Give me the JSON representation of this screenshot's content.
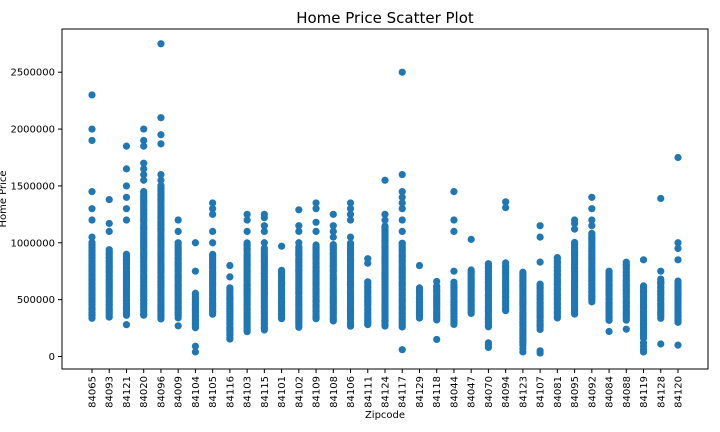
{
  "chart_data": {
    "type": "scatter",
    "title": "Home Price Scatter Plot",
    "xlabel": "Zipcode",
    "ylabel": "Home Price",
    "ylim": [
      -110000,
      2880000
    ],
    "yticks": [
      0,
      500000,
      1000000,
      1500000,
      2000000,
      2500000
    ],
    "grid": false,
    "marker_color": "#1f77b4",
    "categories": [
      "84065",
      "84093",
      "84121",
      "84020",
      "84096",
      "84009",
      "84104",
      "84105",
      "84116",
      "84103",
      "84115",
      "84101",
      "84102",
      "84109",
      "84108",
      "84106",
      "84111",
      "84124",
      "84117",
      "84129",
      "84118",
      "84044",
      "84047",
      "84070",
      "84094",
      "84123",
      "84107",
      "84081",
      "84095",
      "84092",
      "84084",
      "84088",
      "84119",
      "84128",
      "84120"
    ],
    "ranges": [
      [
        340000,
        1000000
      ],
      [
        350000,
        940000
      ],
      [
        360000,
        900000
      ],
      [
        360000,
        1450000
      ],
      [
        330000,
        1500000
      ],
      [
        340000,
        1000000
      ],
      [
        250000,
        560000
      ],
      [
        370000,
        900000
      ],
      [
        150000,
        600000
      ],
      [
        220000,
        1000000
      ],
      [
        230000,
        950000
      ],
      [
        330000,
        760000
      ],
      [
        260000,
        960000
      ],
      [
        330000,
        980000
      ],
      [
        310000,
        980000
      ],
      [
        270000,
        1000000
      ],
      [
        280000,
        660000
      ],
      [
        270000,
        1150000
      ],
      [
        260000,
        1000000
      ],
      [
        340000,
        600000
      ],
      [
        320000,
        620000
      ],
      [
        280000,
        650000
      ],
      [
        380000,
        760000
      ],
      [
        260000,
        820000
      ],
      [
        400000,
        820000
      ],
      [
        120000,
        740000
      ],
      [
        240000,
        640000
      ],
      [
        340000,
        860000
      ],
      [
        370000,
        1000000
      ],
      [
        480000,
        1080000
      ],
      [
        320000,
        740000
      ],
      [
        320000,
        830000
      ],
      [
        180000,
        620000
      ],
      [
        340000,
        680000
      ],
      [
        300000,
        660000
      ]
    ],
    "extra_points": [
      [
        0,
        2300000
      ],
      [
        0,
        2000000
      ],
      [
        0,
        1900000
      ],
      [
        0,
        1450000
      ],
      [
        0,
        1300000
      ],
      [
        0,
        1200000
      ],
      [
        0,
        1050000
      ],
      [
        1,
        1380000
      ],
      [
        1,
        1170000
      ],
      [
        1,
        1100000
      ],
      [
        2,
        1850000
      ],
      [
        2,
        1650000
      ],
      [
        2,
        1500000
      ],
      [
        2,
        1400000
      ],
      [
        2,
        1300000
      ],
      [
        2,
        1200000
      ],
      [
        2,
        280000
      ],
      [
        3,
        2000000
      ],
      [
        3,
        1900000
      ],
      [
        3,
        1850000
      ],
      [
        3,
        1700000
      ],
      [
        3,
        1650000
      ],
      [
        3,
        1600000
      ],
      [
        3,
        1550000
      ],
      [
        4,
        2750000
      ],
      [
        4,
        2100000
      ],
      [
        4,
        1950000
      ],
      [
        4,
        1870000
      ],
      [
        4,
        1600000
      ],
      [
        4,
        1550000
      ],
      [
        5,
        1200000
      ],
      [
        5,
        1100000
      ],
      [
        5,
        270000
      ],
      [
        6,
        1000000
      ],
      [
        6,
        750000
      ],
      [
        6,
        90000
      ],
      [
        6,
        40000
      ],
      [
        7,
        1350000
      ],
      [
        7,
        1300000
      ],
      [
        7,
        1250000
      ],
      [
        7,
        1100000
      ],
      [
        7,
        1000000
      ],
      [
        8,
        800000
      ],
      [
        8,
        700000
      ],
      [
        9,
        1250000
      ],
      [
        9,
        1200000
      ],
      [
        9,
        1100000
      ],
      [
        10,
        1250000
      ],
      [
        10,
        1220000
      ],
      [
        10,
        1150000
      ],
      [
        10,
        1100000
      ],
      [
        10,
        1000000
      ],
      [
        11,
        970000
      ],
      [
        12,
        1290000
      ],
      [
        12,
        1150000
      ],
      [
        12,
        1100000
      ],
      [
        12,
        1000000
      ],
      [
        13,
        1350000
      ],
      [
        13,
        1300000
      ],
      [
        13,
        1180000
      ],
      [
        13,
        1100000
      ],
      [
        14,
        1250000
      ],
      [
        14,
        1150000
      ],
      [
        14,
        1100000
      ],
      [
        14,
        1050000
      ],
      [
        15,
        1350000
      ],
      [
        15,
        1300000
      ],
      [
        15,
        1250000
      ],
      [
        15,
        1200000
      ],
      [
        15,
        1050000
      ],
      [
        16,
        860000
      ],
      [
        16,
        820000
      ],
      [
        17,
        1550000
      ],
      [
        17,
        1250000
      ],
      [
        17,
        1200000
      ],
      [
        18,
        2500000
      ],
      [
        18,
        1600000
      ],
      [
        18,
        1450000
      ],
      [
        18,
        1400000
      ],
      [
        18,
        1350000
      ],
      [
        18,
        1300000
      ],
      [
        18,
        1200000
      ],
      [
        18,
        1100000
      ],
      [
        18,
        60000
      ],
      [
        19,
        800000
      ],
      [
        20,
        660000
      ],
      [
        20,
        150000
      ],
      [
        21,
        1450000
      ],
      [
        21,
        1200000
      ],
      [
        21,
        1100000
      ],
      [
        21,
        750000
      ],
      [
        22,
        1030000
      ],
      [
        23,
        120000
      ],
      [
        23,
        100000
      ],
      [
        23,
        80000
      ],
      [
        24,
        1360000
      ],
      [
        24,
        1310000
      ],
      [
        25,
        100000
      ],
      [
        25,
        70000
      ],
      [
        25,
        40000
      ],
      [
        26,
        1150000
      ],
      [
        26,
        1050000
      ],
      [
        26,
        830000
      ],
      [
        26,
        50000
      ],
      [
        26,
        30000
      ],
      [
        27,
        870000
      ],
      [
        28,
        1200000
      ],
      [
        28,
        1170000
      ],
      [
        28,
        1120000
      ],
      [
        29,
        1400000
      ],
      [
        29,
        1300000
      ],
      [
        29,
        1200000
      ],
      [
        29,
        1150000
      ],
      [
        30,
        750000
      ],
      [
        30,
        220000
      ],
      [
        31,
        240000
      ],
      [
        32,
        850000
      ],
      [
        32,
        160000
      ],
      [
        32,
        120000
      ],
      [
        32,
        90000
      ],
      [
        32,
        60000
      ],
      [
        32,
        40000
      ],
      [
        33,
        1390000
      ],
      [
        33,
        750000
      ],
      [
        33,
        650000
      ],
      [
        33,
        110000
      ],
      [
        34,
        1750000
      ],
      [
        34,
        1000000
      ],
      [
        34,
        950000
      ],
      [
        34,
        850000
      ],
      [
        34,
        100000
      ]
    ]
  }
}
